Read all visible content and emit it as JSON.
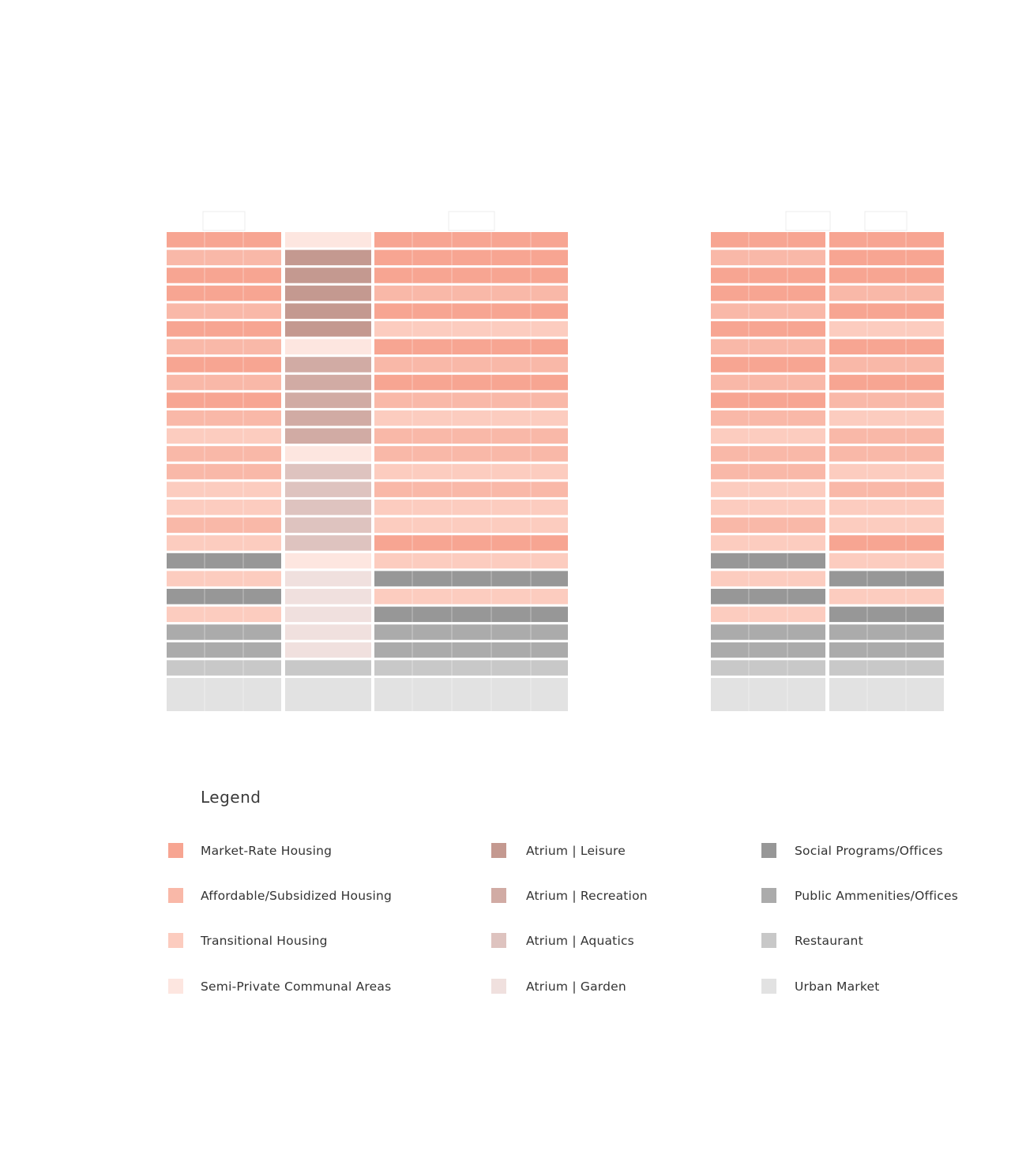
{
  "colors": {
    "market": "#f7a592",
    "affordable": "#f9b8a8",
    "transitional": "#fcccbf",
    "semi_private": "#fde6e0",
    "atrium_leisure": "#c49990",
    "atrium_recreation": "#d1aba4",
    "atrium_aquatics": "#dec3bf",
    "atrium_garden": "#f0e0de",
    "social": "#979797",
    "public": "#ababab",
    "restaurant": "#c8c8c8",
    "market_urban": "#e2e2e2"
  },
  "diagram": {
    "left_tower": {
      "left_block": [
        "market",
        "affordable",
        "market",
        "market",
        "affordable",
        "market",
        "affordable",
        "market",
        "affordable",
        "market",
        "affordable",
        "transitional",
        "affordable",
        "affordable",
        "transitional",
        "transitional",
        "affordable",
        "transitional",
        "social",
        "transitional",
        "social",
        "transitional",
        "public",
        "public",
        "restaurant",
        "market_urban"
      ],
      "atrium": [
        "semi_private",
        "atrium_leisure",
        "atrium_leisure",
        "atrium_leisure",
        "atrium_leisure",
        "atrium_leisure",
        "semi_private",
        "atrium_recreation",
        "atrium_recreation",
        "atrium_recreation",
        "atrium_recreation",
        "atrium_recreation",
        "semi_private",
        "atrium_aquatics",
        "atrium_aquatics",
        "atrium_aquatics",
        "atrium_aquatics",
        "atrium_aquatics",
        "semi_private",
        "atrium_garden",
        "atrium_garden",
        "atrium_garden",
        "atrium_garden",
        "atrium_garden",
        "restaurant",
        "market_urban"
      ],
      "right_block": [
        "market",
        "market",
        "market",
        "affordable",
        "market",
        "transitional",
        "market",
        "affordable",
        "market",
        "affordable",
        "transitional",
        "affordable",
        "affordable",
        "transitional",
        "affordable",
        "transitional",
        "transitional",
        "market",
        "transitional",
        "social",
        "transitional",
        "social",
        "public",
        "public",
        "restaurant",
        "market_urban"
      ]
    },
    "right_tower": {
      "left_block": [
        "market",
        "affordable",
        "market",
        "market",
        "affordable",
        "market",
        "affordable",
        "market",
        "affordable",
        "market",
        "affordable",
        "transitional",
        "affordable",
        "affordable",
        "transitional",
        "transitional",
        "affordable",
        "transitional",
        "social",
        "transitional",
        "social",
        "transitional",
        "public",
        "public",
        "restaurant",
        "market_urban"
      ],
      "right_block": [
        "market",
        "market",
        "market",
        "affordable",
        "market",
        "transitional",
        "market",
        "affordable",
        "market",
        "affordable",
        "transitional",
        "affordable",
        "affordable",
        "transitional",
        "affordable",
        "transitional",
        "transitional",
        "market",
        "transitional",
        "social",
        "transitional",
        "social",
        "public",
        "public",
        "restaurant",
        "market_urban"
      ]
    }
  },
  "legend": {
    "title": "Legend",
    "columns": [
      [
        {
          "label": "Market-Rate Housing",
          "key": "market"
        },
        {
          "label": "Affordable/Subsidized Housing",
          "key": "affordable"
        },
        {
          "label": "Transitional Housing",
          "key": "transitional"
        },
        {
          "label": "Semi-Private Communal Areas",
          "key": "semi_private"
        }
      ],
      [
        {
          "label": "Atrium | Leisure",
          "key": "atrium_leisure"
        },
        {
          "label": "Atrium | Recreation",
          "key": "atrium_recreation"
        },
        {
          "label": "Atrium | Aquatics",
          "key": "atrium_aquatics"
        },
        {
          "label": "Atrium | Garden",
          "key": "atrium_garden"
        }
      ],
      [
        {
          "label": "Social Programs/Offices",
          "key": "social"
        },
        {
          "label": "Public Ammenities/Offices",
          "key": "public"
        },
        {
          "label": "Restaurant",
          "key": "restaurant"
        },
        {
          "label": "Urban Market",
          "key": "market_urban"
        }
      ]
    ]
  }
}
